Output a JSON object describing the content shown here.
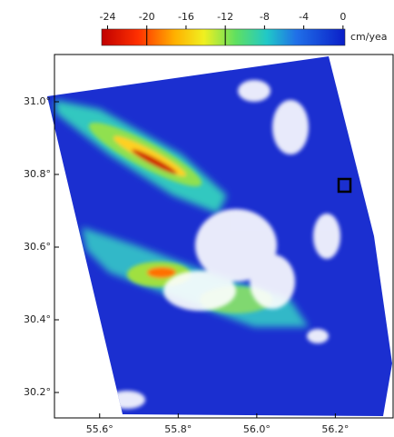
{
  "map": {
    "colorbar": {
      "clim": [
        -24.6,
        0.2
      ],
      "ticks": [
        -24,
        -20,
        -16,
        -12,
        -8,
        -4,
        0
      ],
      "unit": "cm/yea"
    },
    "axes": {
      "xlim": [
        55.485,
        56.347
      ],
      "ylim": [
        30.13,
        31.13
      ],
      "xticks": [
        {
          "value": 55.6,
          "label": "55.6°"
        },
        {
          "value": 55.8,
          "label": "55.8°"
        },
        {
          "value": 56.0,
          "label": "56.0°"
        },
        {
          "value": 56.2,
          "label": "56.2°"
        }
      ],
      "yticks": [
        {
          "value": 31.0,
          "label": "31.0°"
        },
        {
          "value": 30.8,
          "label": "30.8°"
        },
        {
          "value": 30.6,
          "label": "30.6°"
        },
        {
          "value": 30.4,
          "label": "30.4°"
        },
        {
          "value": 30.2,
          "label": "30.2°"
        }
      ]
    }
  }
}
